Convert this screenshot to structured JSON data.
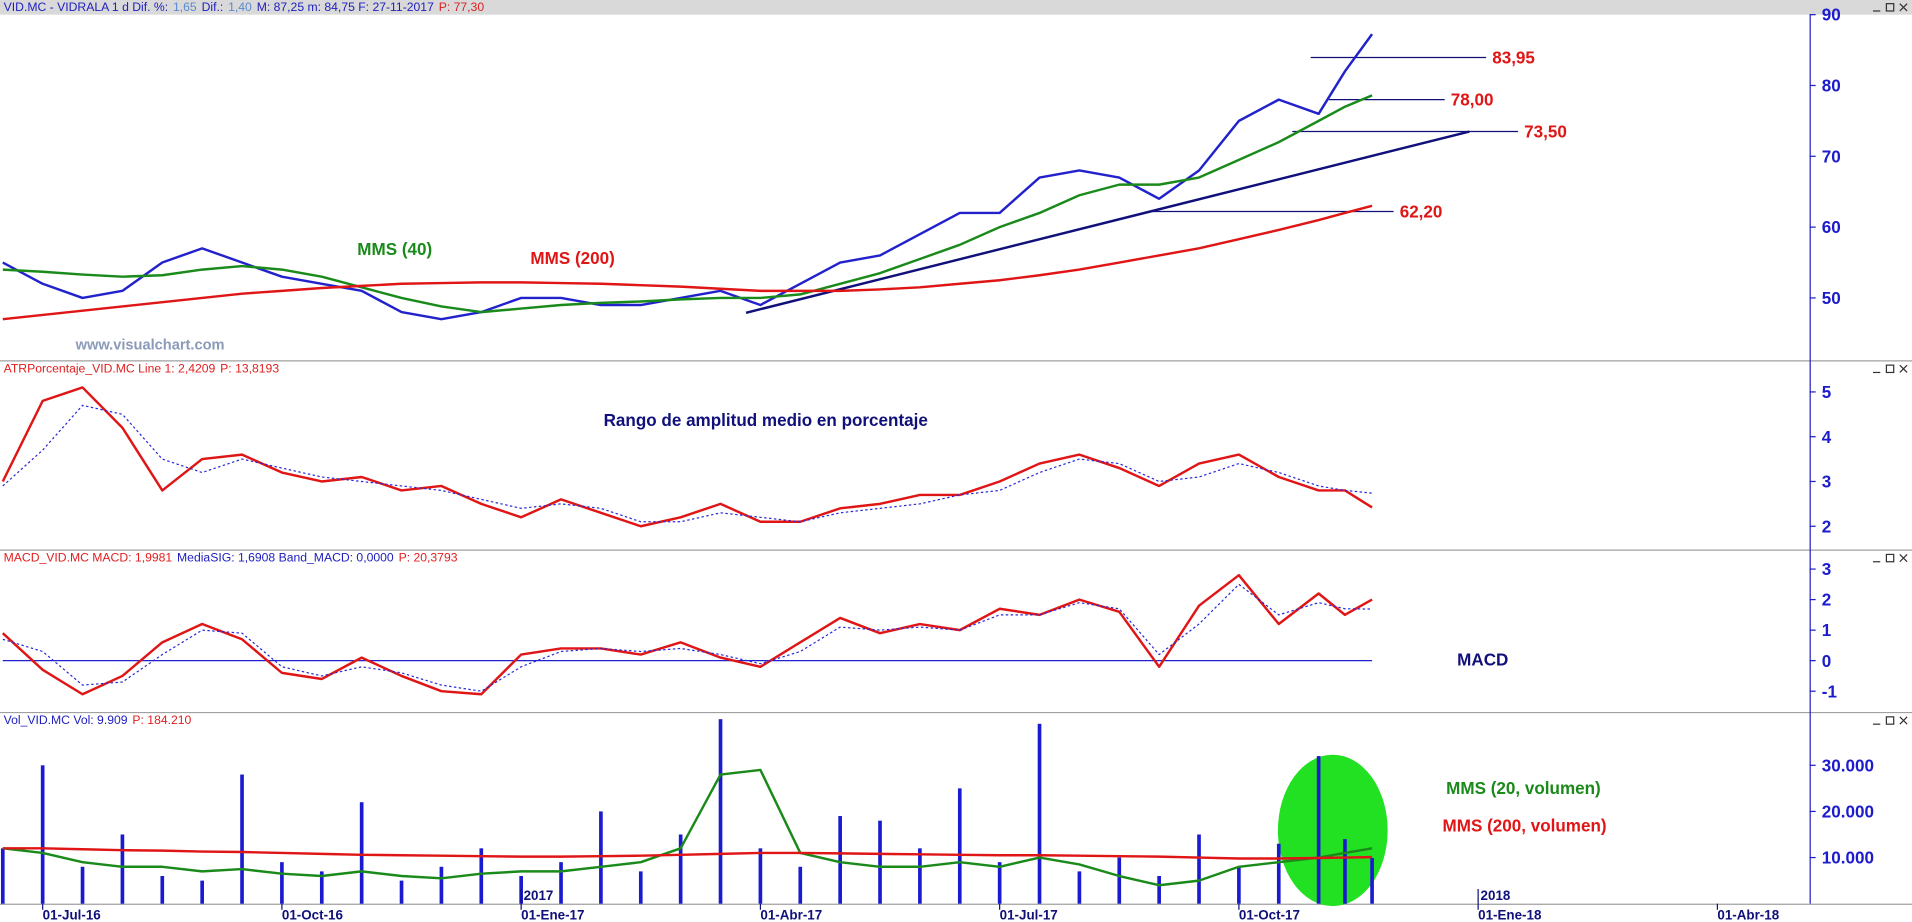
{
  "chart_data": [
    {
      "type": "line",
      "header": [
        "VID.MC - VIDRALA   1 d  Dif. %:",
        "1,65",
        "Dif.:",
        "1,40",
        "M: 87,25  m: 84,75  F: 27-11-2017",
        "P: 77,30"
      ],
      "header_colors": [
        "#2020c0",
        "#5a8ad0",
        "#2020c0",
        "#5a8ad0",
        "#2020c0",
        "#e02020"
      ],
      "watermark": "www.visualchart.com",
      "x": [
        -0.5,
        0,
        0.5,
        1,
        1.5,
        2,
        2.5,
        3,
        3.5,
        4,
        4.5,
        5,
        5.5,
        6,
        6.5,
        7,
        7.5,
        8,
        8.5,
        9,
        9.5,
        10,
        10.5,
        11,
        11.5,
        12,
        12.5,
        13,
        13.5,
        14,
        14.5,
        15,
        15.5,
        16,
        16.33,
        16.67
      ],
      "series": [
        {
          "color": "#2222cc",
          "values": [
            55,
            52,
            50,
            51,
            55,
            57,
            55,
            53,
            52,
            51,
            48,
            47,
            48,
            50,
            50,
            49,
            49,
            50,
            51,
            49,
            52,
            55,
            56,
            59,
            62,
            62,
            67,
            68,
            67,
            64,
            68,
            75,
            78,
            76,
            82,
            87.25
          ]
        },
        {
          "name": "MMS (40)",
          "color": "#1a8a1a",
          "values": [
            54,
            53.7,
            53.3,
            53,
            53.2,
            54,
            54.5,
            54,
            53,
            51.5,
            50,
            48.8,
            48,
            48.5,
            49,
            49.3,
            49.5,
            49.8,
            50,
            50,
            50.5,
            52,
            53.5,
            55.5,
            57.5,
            60,
            62,
            64.5,
            66,
            66,
            67,
            69.5,
            72,
            75,
            77,
            78.6
          ]
        },
        {
          "name": "MMS (200)",
          "color": "#e01515",
          "values": [
            47,
            47.6,
            48.2,
            48.8,
            49.4,
            50,
            50.6,
            51,
            51.4,
            51.7,
            52,
            52.1,
            52.2,
            52.2,
            52.1,
            52,
            51.8,
            51.6,
            51.3,
            51,
            51,
            51,
            51.2,
            51.5,
            52,
            52.5,
            53.2,
            54,
            55,
            56,
            57,
            58.3,
            59.6,
            61,
            62,
            63
          ]
        }
      ],
      "trendline": {
        "x": [
          8.82,
          17.89
        ],
        "values": [
          47.9,
          73.5
        ],
        "color": "#10107a"
      },
      "levels": {
        "values": [
          83.95,
          78,
          73.5,
          62.2
        ],
        "value_labels": [
          "83,95",
          "78,00",
          "73,50",
          "62,20"
        ],
        "x_start": [
          15.9,
          16.13,
          15.67,
          13.9
        ],
        "x_end": [
          18.1,
          17.58,
          18.5,
          16.94
        ],
        "color": "#10107a",
        "label_color": "#e01515"
      },
      "ylim": [
        41.2,
        90
      ],
      "yticks": [
        50,
        60,
        70,
        80,
        90
      ]
    },
    {
      "type": "line",
      "header": [
        "ATRPorcentaje_VID.MC  Line 1: 2,4209",
        "P: 13,8193"
      ],
      "header_colors": [
        "#e02020",
        "#e02020"
      ],
      "title": "Rango de amplitud medio en porcentaje",
      "x": [
        -0.5,
        0,
        0.5,
        1,
        1.5,
        2,
        2.5,
        3,
        3.5,
        4,
        4.5,
        5,
        5.5,
        6,
        6.5,
        7,
        7.5,
        8,
        8.5,
        9,
        9.5,
        10,
        10.5,
        11,
        11.5,
        12,
        12.5,
        13,
        13.5,
        14,
        14.5,
        15,
        15.5,
        16,
        16.33,
        16.67
      ],
      "series": [
        {
          "color": "#e01515",
          "values": [
            3,
            4.8,
            5.1,
            4.2,
            2.8,
            3.5,
            3.6,
            3.2,
            3,
            3.1,
            2.8,
            2.9,
            2.5,
            2.2,
            2.6,
            2.3,
            2,
            2.2,
            2.5,
            2.1,
            2.1,
            2.4,
            2.5,
            2.7,
            2.7,
            3,
            3.4,
            3.6,
            3.3,
            2.9,
            3.4,
            3.6,
            3.1,
            2.8,
            2.8,
            2.42
          ]
        },
        {
          "color": "#2a2ad8",
          "dashed": true,
          "values": [
            2.9,
            3.7,
            4.7,
            4.5,
            3.5,
            3.2,
            3.5,
            3.3,
            3.1,
            3,
            2.9,
            2.8,
            2.6,
            2.4,
            2.5,
            2.4,
            2.1,
            2.1,
            2.3,
            2.2,
            2.1,
            2.3,
            2.4,
            2.5,
            2.7,
            2.8,
            3.2,
            3.5,
            3.4,
            3,
            3.1,
            3.4,
            3.2,
            2.9,
            2.8,
            2.74
          ]
        }
      ],
      "ylim": [
        1.48,
        5.68
      ],
      "yticks": [
        2,
        3,
        4,
        5
      ]
    },
    {
      "type": "line",
      "header": [
        "MACD_VID.MC  MACD: 1,9981",
        "MediaSIG: 1,6908  Band_MACD: 0,0000",
        "P: 20,3793"
      ],
      "header_colors": [
        "#e02020",
        "#2020c0",
        "#e02020"
      ],
      "title": "MACD",
      "band": 0,
      "x": [
        -0.5,
        0,
        0.5,
        1,
        1.5,
        2,
        2.5,
        3,
        3.5,
        4,
        4.5,
        5,
        5.5,
        6,
        6.5,
        7,
        7.5,
        8,
        8.5,
        9,
        9.5,
        10,
        10.5,
        11,
        11.5,
        12,
        12.5,
        13,
        13.5,
        14,
        14.5,
        15,
        15.5,
        16,
        16.33,
        16.67
      ],
      "series": [
        {
          "color": "#e01515",
          "values": [
            0.9,
            -0.3,
            -1.1,
            -0.5,
            0.6,
            1.2,
            0.7,
            -0.4,
            -0.6,
            0.1,
            -0.5,
            -1,
            -1.1,
            0.2,
            0.4,
            0.4,
            0.2,
            0.6,
            0.1,
            -0.2,
            0.6,
            1.4,
            0.9,
            1.2,
            1,
            1.7,
            1.5,
            2,
            1.6,
            -0.2,
            1.8,
            2.8,
            1.2,
            2.2,
            1.5,
            2.0
          ]
        },
        {
          "color": "#2a2ad8",
          "dashed": true,
          "values": [
            0.7,
            0.3,
            -0.8,
            -0.7,
            0.2,
            1,
            0.9,
            -0.2,
            -0.5,
            -0.2,
            -0.4,
            -0.8,
            -1,
            -0.2,
            0.3,
            0.4,
            0.3,
            0.4,
            0.2,
            -0.1,
            0.3,
            1.1,
            1,
            1.1,
            1,
            1.5,
            1.5,
            1.9,
            1.7,
            0.2,
            1.2,
            2.5,
            1.5,
            1.9,
            1.7,
            1.69
          ]
        }
      ],
      "ylim": [
        -1.68,
        3.6
      ],
      "yticks": [
        -1,
        0,
        1,
        2,
        3
      ]
    },
    {
      "type": "bar",
      "header": [
        "Vol_VID.MC  Vol: 9.909",
        "P: 184.210"
      ],
      "header_colors": [
        "#2020c0",
        "#e02020"
      ],
      "x": [
        -0.5,
        0,
        0.5,
        1,
        1.5,
        2,
        2.5,
        3,
        3.5,
        4,
        4.5,
        5,
        5.5,
        6,
        6.5,
        7,
        7.5,
        8,
        8.5,
        9,
        9.5,
        10,
        10.5,
        11,
        11.5,
        12,
        12.5,
        13,
        13.5,
        14,
        14.5,
        15,
        15.5,
        16,
        16.33,
        16.67
      ],
      "series": [
        {
          "type": "bar",
          "color": "#1a1ad0",
          "values": [
            12000,
            30000,
            8000,
            15000,
            6000,
            5000,
            28000,
            9000,
            7000,
            22000,
            5000,
            8000,
            12000,
            6000,
            9000,
            20000,
            7000,
            15000,
            40000,
            12000,
            8000,
            19000,
            18000,
            12000,
            25000,
            9000,
            39000,
            7000,
            10000,
            6000,
            15000,
            8000,
            13000,
            32000,
            14000,
            9909
          ]
        },
        {
          "type": "line",
          "name": "MMS (20, volumen)",
          "color": "#1a8a1a",
          "values": [
            12000,
            11000,
            9000,
            8000,
            8000,
            7000,
            7500,
            6500,
            6000,
            7000,
            6000,
            5500,
            6500,
            7000,
            7000,
            8000,
            9000,
            12000,
            28000,
            29000,
            11000,
            9000,
            8000,
            8000,
            9000,
            8000,
            10000,
            8500,
            6000,
            4000,
            5000,
            8000,
            9000,
            10000,
            11000,
            12000
          ]
        },
        {
          "type": "line",
          "name": "MMS (200, volumen)",
          "color": "#e01515",
          "values": [
            12000,
            12000,
            11800,
            11600,
            11500,
            11300,
            11200,
            11000,
            10800,
            10600,
            10500,
            10400,
            10300,
            10200,
            10200,
            10300,
            10400,
            10600,
            10800,
            11000,
            11000,
            10900,
            10800,
            10700,
            10600,
            10500,
            10500,
            10400,
            10300,
            10200,
            10000,
            9800,
            9800,
            9900,
            10000,
            10100
          ]
        }
      ],
      "ylim": [
        0,
        41300
      ],
      "yticks": [
        {
          "value": 10000,
          "label": "10.000"
        },
        {
          "value": 20000,
          "label": "20.000"
        },
        {
          "value": 30000,
          "label": "30.000"
        }
      ],
      "xlim": [
        -0.535,
        22.156
      ],
      "xticks": [
        {
          "value": 0,
          "label": "01-Jul-16"
        },
        {
          "value": 3,
          "label": "01-Oct-16"
        },
        {
          "value": 6,
          "label": "01-Ene-17"
        },
        {
          "value": 9,
          "label": "01-Abr-17"
        },
        {
          "value": 12,
          "label": "01-Jul-17"
        },
        {
          "value": 15,
          "label": "01-Oct-17"
        },
        {
          "value": 18,
          "label": "01-Ene-18"
        },
        {
          "value": 21,
          "label": "01-Abr-18"
        }
      ],
      "year_labels": [
        {
          "value": 6,
          "label": "2017"
        },
        {
          "value": 18,
          "label": "2018"
        }
      ]
    }
  ]
}
